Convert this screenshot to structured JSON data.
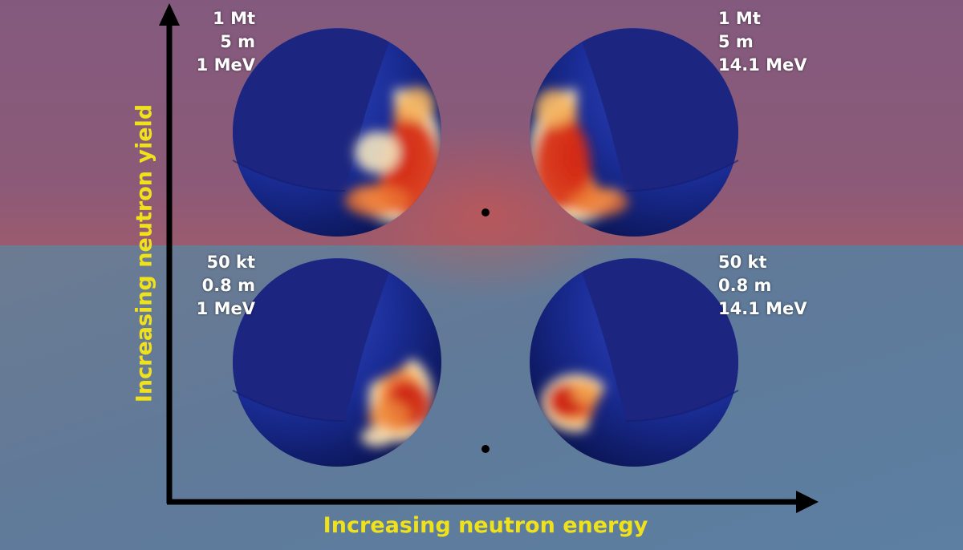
{
  "colors": {
    "background_top": "#86597a",
    "background_bottom": "#607b9b",
    "sphere_base": "#1a2b8e",
    "sphere_cut_face": "#1c2680",
    "hot_spot_core": "#d32a14",
    "hot_spot_mid": "#f4a24a",
    "hot_spot_edge": "#fff3c8",
    "axis_line": "#000000",
    "axis_title": "#f0e21a",
    "label_text": "#ffffff"
  },
  "axes": {
    "x_title": "Increasing neutron energy",
    "y_title": "Increasing neutron yield"
  },
  "panels": [
    {
      "id": "top-left",
      "yield": "1 Mt",
      "radius": "5 m",
      "energy": "1 MeV"
    },
    {
      "id": "top-right",
      "yield": "1 Mt",
      "radius": "5 m",
      "energy": "14.1 MeV"
    },
    {
      "id": "bottom-left",
      "yield": "50 kt",
      "radius": "0.8 m",
      "energy": "1 MeV"
    },
    {
      "id": "bottom-right",
      "yield": "50 kt",
      "radius": "0.8 m",
      "energy": "14.1 MeV"
    }
  ]
}
